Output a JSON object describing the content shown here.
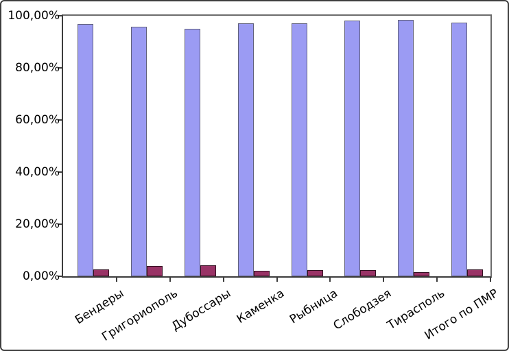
{
  "chart_data": {
    "type": "bar",
    "title": "",
    "xlabel": "",
    "ylabel": "",
    "categories": [
      "Бендеры",
      "Григориополь",
      "Дубоссары",
      "Каменка",
      "Рыбница",
      "Слободзея",
      "Тирасполь",
      "Итого по ПМР"
    ],
    "series": [
      {
        "name": "series-1",
        "color": "#9b9bf3",
        "border_color": "#60607a",
        "values": [
          96.8,
          95.7,
          94.9,
          97.1,
          97.2,
          98.1,
          98.4,
          97.3
        ]
      },
      {
        "name": "series-2",
        "color": "#993366",
        "border_color": "#331021",
        "values": [
          2.6,
          3.9,
          4.2,
          2.0,
          2.4,
          2.3,
          1.6,
          2.6
        ]
      }
    ],
    "ylim": [
      0,
      100
    ],
    "ytick_values": [
      0,
      20,
      40,
      60,
      80,
      100
    ],
    "ytick_labels": [
      "0,00%",
      "20,00%",
      "40,00%",
      "60,00%",
      "80,00%",
      "100,00%"
    ],
    "grid": false,
    "legend_position": "none",
    "colors": {
      "background": "#ffffff",
      "axis": "#3c3c3c",
      "frame": "#6b6b6b",
      "outer_border": "#3e3e3e",
      "text": "#000000"
    }
  }
}
